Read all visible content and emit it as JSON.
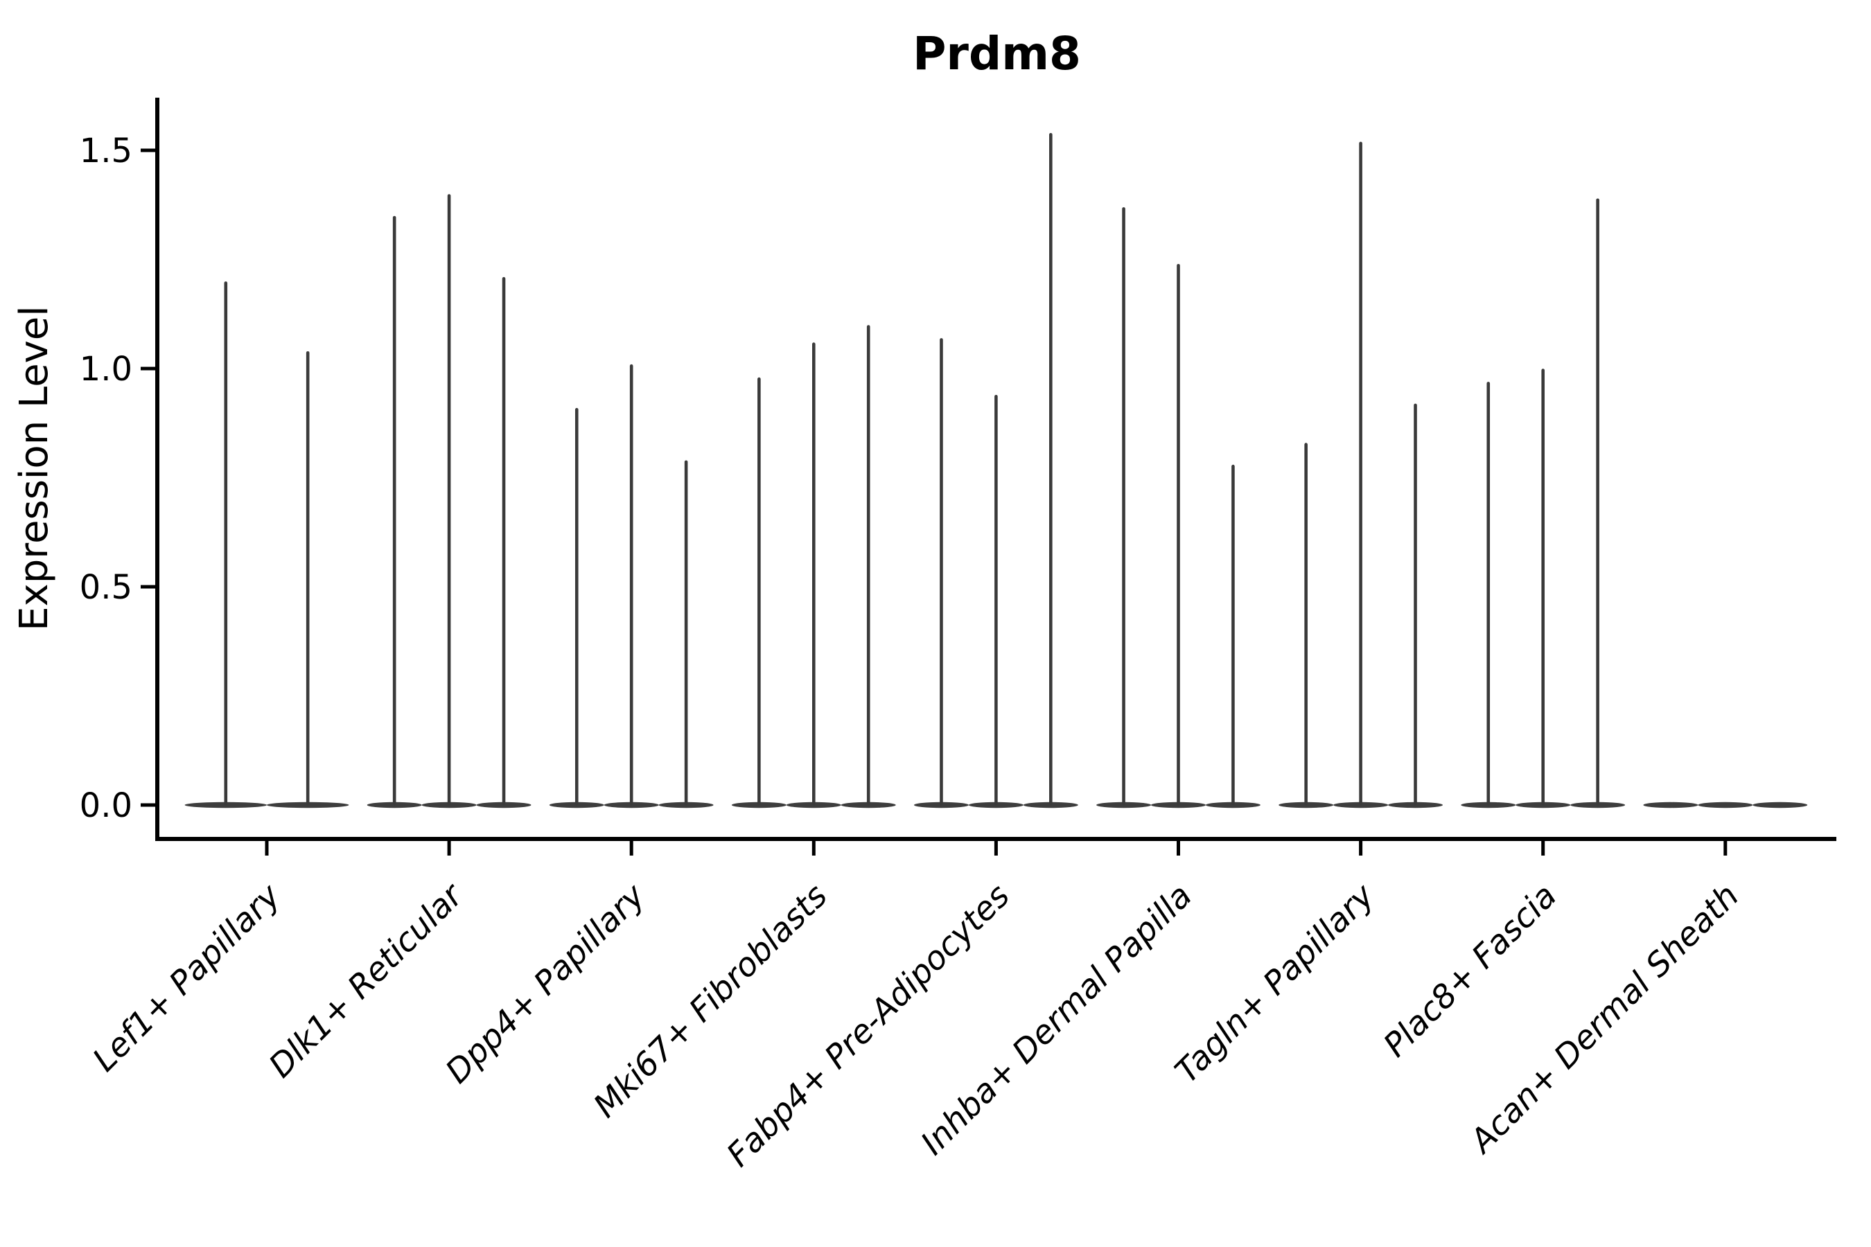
{
  "figure": {
    "title": "Prdm8",
    "ylabel": "Expression Level"
  },
  "chart_data": {
    "type": "violin",
    "title": "Prdm8",
    "xlabel": "",
    "ylabel": "Expression Level",
    "ylim": [
      0,
      1.62
    ],
    "ytick_labels": [
      "0.0",
      "0.5",
      "1.0",
      "1.5"
    ],
    "grid": false,
    "legend": "none",
    "distribution_note": "Expression mass concentrated at 0: each violin renders as a wide flat base at y=0 with a thin vertical spike reaching its maximum expression value",
    "categories": [
      "Lef1+ Papillary",
      "Dlk1+ Reticular",
      "Dpp4+ Papillary",
      "Mki67+ Fibroblasts",
      "Fabp4+ Pre-Adipocytes",
      "Inhba+ Dermal Papilla",
      "Tagln+ Papillary",
      "Plac8+ Fascia",
      "Acan+ Dermal Sheath"
    ],
    "violins": [
      {
        "category": "Lef1+ Papillary",
        "n_violins": 2,
        "max_expression": [
          1.2,
          1.04
        ]
      },
      {
        "category": "Dlk1+ Reticular",
        "n_violins": 3,
        "max_expression": [
          1.35,
          1.4,
          1.21
        ]
      },
      {
        "category": "Dpp4+ Papillary",
        "n_violins": 3,
        "max_expression": [
          0.91,
          1.01,
          0.79
        ]
      },
      {
        "category": "Mki67+ Fibroblasts",
        "n_violins": 3,
        "max_expression": [
          0.98,
          1.06,
          1.1
        ]
      },
      {
        "category": "Fabp4+ Pre-Adipocytes",
        "n_violins": 3,
        "max_expression": [
          1.07,
          0.94,
          1.54
        ]
      },
      {
        "category": "Inhba+ Dermal Papilla",
        "n_violins": 3,
        "max_expression": [
          1.37,
          1.24,
          0.78
        ]
      },
      {
        "category": "Tagln+ Papillary",
        "n_violins": 3,
        "max_expression": [
          0.83,
          1.52,
          0.92
        ]
      },
      {
        "category": "Plac8+ Fascia",
        "n_violins": 3,
        "max_expression": [
          0.97,
          1.0,
          1.39
        ]
      },
      {
        "category": "Acan+ Dermal Sheath",
        "n_violins": 3,
        "max_expression": [
          0.0,
          0.0,
          0.0
        ]
      }
    ],
    "colors": {
      "violin": "#3a3a3a",
      "violin_base": "#3d3d3d",
      "axis": "#000000",
      "text": "#000000",
      "background": "#ffffff"
    }
  }
}
